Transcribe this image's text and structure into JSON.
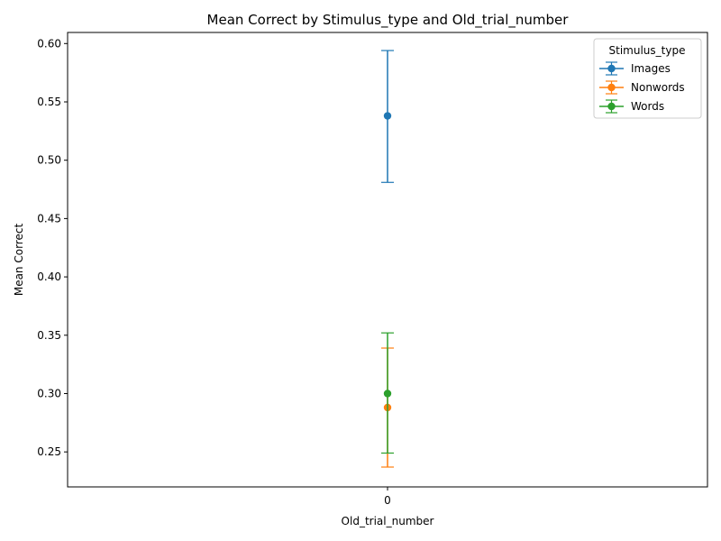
{
  "chart_data": {
    "type": "line",
    "title": "Mean Correct by Stimulus_type and Old_trial_number",
    "xlabel": "Old_trial_number",
    "ylabel": "Mean Correct",
    "x_categories": [
      "0"
    ],
    "xlim": [
      -0.1,
      0.1
    ],
    "ylim": [
      0.22,
      0.6095
    ],
    "yticks": [
      0.25,
      0.3,
      0.35,
      0.4,
      0.45,
      0.5,
      0.55,
      0.6
    ],
    "ytick_labels": [
      "0.25",
      "0.30",
      "0.35",
      "0.40",
      "0.45",
      "0.50",
      "0.55",
      "0.60"
    ],
    "grid": false,
    "legend": {
      "title": "Stimulus_type",
      "placement": "top-right"
    },
    "series": [
      {
        "name": "Images",
        "color": "#1f77b4",
        "x": [
          0
        ],
        "y": [
          0.538
        ],
        "err_low": [
          0.481
        ],
        "err_high": [
          0.594
        ]
      },
      {
        "name": "Nonwords",
        "color": "#ff7f0e",
        "x": [
          0
        ],
        "y": [
          0.288
        ],
        "err_low": [
          0.237
        ],
        "err_high": [
          0.339
        ]
      },
      {
        "name": "Words",
        "color": "#2ca02c",
        "x": [
          0
        ],
        "y": [
          0.3
        ],
        "err_low": [
          0.249
        ],
        "err_high": [
          0.352
        ]
      }
    ]
  }
}
